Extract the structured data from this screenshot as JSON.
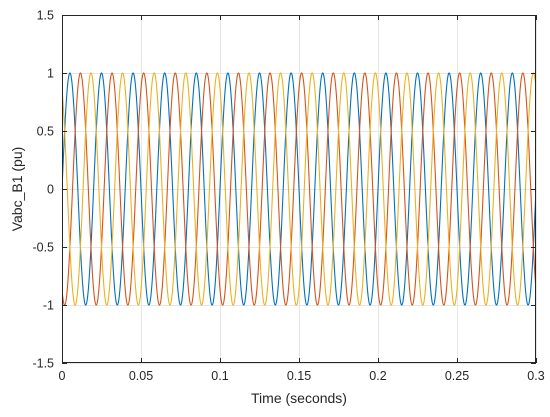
{
  "chart_data": {
    "type": "line",
    "title": "",
    "xlabel": "Time (seconds)",
    "ylabel": "Vabc_B1 (pu)",
    "xlim": [
      0,
      0.3
    ],
    "ylim": [
      -1.5,
      1.5
    ],
    "grid": true,
    "legend": "none",
    "x_ticks": [
      0,
      0.05,
      0.1,
      0.15,
      0.2,
      0.25,
      0.3
    ],
    "x_tick_labels": [
      "0",
      "0.05",
      "0.1",
      "0.15",
      "0.2",
      "0.25",
      "0.3"
    ],
    "y_ticks": [
      -1.5,
      -1,
      -0.5,
      0,
      0.5,
      1,
      1.5
    ],
    "y_tick_labels": [
      "-1.5",
      "-1",
      "-0.5",
      "0",
      "0.5",
      "1",
      "1.5"
    ],
    "frequency_hz": 50,
    "amplitude_pu": 1.0,
    "series": [
      {
        "color": "#0072BD",
        "phase_deg": 0
      },
      {
        "color": "#D95319",
        "phase_deg": -120
      },
      {
        "color": "#EDB120",
        "phase_deg": 120
      }
    ]
  }
}
